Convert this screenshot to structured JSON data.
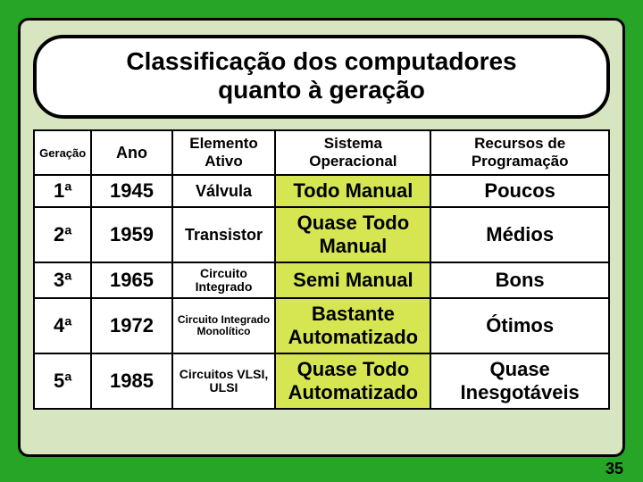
{
  "slide": {
    "background_color": "#27a527",
    "panel_color": "#d7e5c1",
    "title_line1": "Classificação dos computadores",
    "title_line2": "quanto à geração",
    "page_number": "35"
  },
  "table": {
    "alt_cell_color": "#d6e653",
    "headers": {
      "geracao": "Geração",
      "ano": "Ano",
      "elemento": "Elemento Ativo",
      "sistema": "Sistema Operacional",
      "recursos": "Recursos de Programação"
    },
    "rows": [
      {
        "geracao": "1ª",
        "ano": "1945",
        "elemento": "Válvula",
        "sistema": "Todo Manual",
        "recursos": "Poucos"
      },
      {
        "geracao": "2ª",
        "ano": "1959",
        "elemento": "Transistor",
        "sistema": "Quase Todo Manual",
        "recursos": "Médios"
      },
      {
        "geracao": "3ª",
        "ano": "1965",
        "elemento": "Circuito Integrado",
        "sistema": "Semi Manual",
        "recursos": "Bons"
      },
      {
        "geracao": "4ª",
        "ano": "1972",
        "elemento": "Circuito Integrado Monolítico",
        "sistema": "Bastante Automatizado",
        "recursos": "Ótimos"
      },
      {
        "geracao": "5ª",
        "ano": "1985",
        "elemento": "Circuitos VLSI, ULSI",
        "sistema": "Quase Todo Automatizado",
        "recursos": "Quase Inesgotáveis"
      }
    ]
  }
}
